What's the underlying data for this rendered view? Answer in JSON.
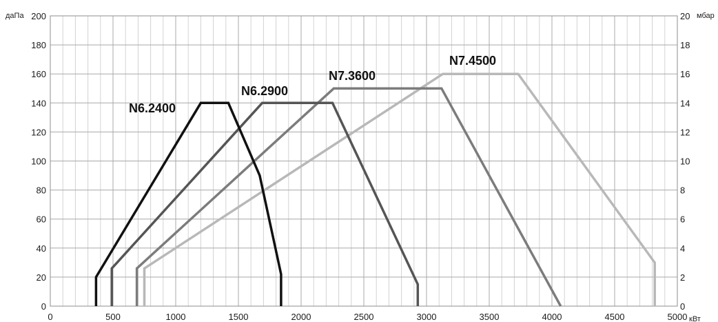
{
  "chart_data": {
    "type": "line",
    "title": "",
    "xlim": [
      0,
      5000
    ],
    "ylim": [
      0,
      200
    ],
    "y2lim": [
      0,
      20
    ],
    "x_ticks": [
      0,
      500,
      1000,
      1500,
      2000,
      2500,
      3000,
      3500,
      4000,
      4500,
      5000
    ],
    "y_ticks": [
      0,
      20,
      40,
      60,
      80,
      100,
      120,
      140,
      160,
      180,
      200
    ],
    "y2_ticks": [
      0,
      2,
      4,
      6,
      8,
      10,
      12,
      14,
      16,
      18,
      20
    ],
    "x_tick_labels": [
      "0",
      "500",
      "1000",
      "1500",
      "2000",
      "2500",
      "3000",
      "3500",
      "4000",
      "4500",
      "5000"
    ],
    "y_tick_labels": [
      "0",
      "20",
      "40",
      "60",
      "80",
      "100",
      "120",
      "140",
      "160",
      "180",
      "200"
    ],
    "y2_tick_labels": [
      "0",
      "2",
      "4",
      "6",
      "8",
      "10",
      "12",
      "14",
      "16",
      "18",
      "20"
    ],
    "x_unit": "кВт",
    "y_unit": "даПа",
    "y2_unit": "мбар",
    "x_minor_step": 100,
    "grid": true,
    "series": [
      {
        "name": "N7.4500",
        "color": "#b8b8b8",
        "points": [
          [
            750,
            0
          ],
          [
            750,
            26
          ],
          [
            3130,
            160
          ],
          [
            3730,
            160
          ],
          [
            4820,
            30
          ],
          [
            4820,
            0
          ]
        ]
      },
      {
        "name": "N7.3600",
        "color": "#7c7c7c",
        "points": [
          [
            690,
            0
          ],
          [
            690,
            26
          ],
          [
            2260,
            150
          ],
          [
            3120,
            150
          ],
          [
            4070,
            0
          ]
        ]
      },
      {
        "name": "N6.2900",
        "color": "#555555",
        "points": [
          [
            490,
            0
          ],
          [
            490,
            26
          ],
          [
            1690,
            140
          ],
          [
            2250,
            140
          ],
          [
            2930,
            15
          ],
          [
            2930,
            0
          ]
        ]
      },
      {
        "name": "N6.2400",
        "color": "#111111",
        "points": [
          [
            365,
            0
          ],
          [
            365,
            20
          ],
          [
            1200,
            140
          ],
          [
            1420,
            140
          ],
          [
            1670,
            90
          ],
          [
            1840,
            22
          ],
          [
            1840,
            0
          ]
        ]
      }
    ]
  }
}
